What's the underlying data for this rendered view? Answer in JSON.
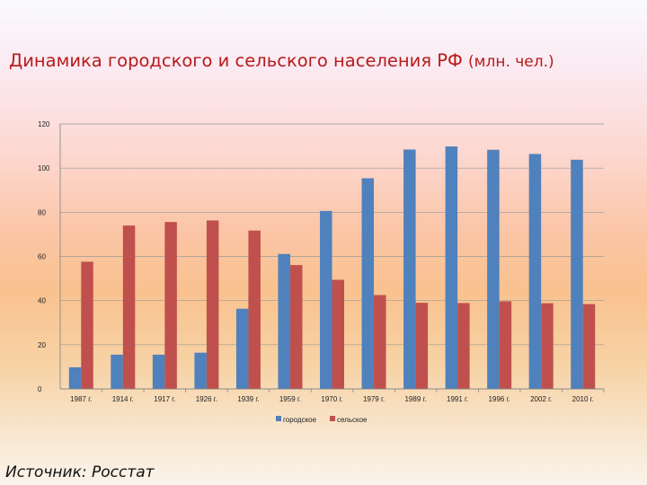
{
  "header": {
    "title_main": "Динамика городского и сельского населения РФ",
    "title_unit": "(млн. чел.)"
  },
  "footer": {
    "source": "Источник: Росстат"
  },
  "colors": {
    "series1": "#4f81bd",
    "series2": "#c0504d",
    "grid": "#9a9a9a",
    "axis_text": "#222222"
  },
  "chart_data": {
    "type": "bar",
    "title": "",
    "xlabel": "",
    "ylabel": "",
    "ylim": [
      0,
      120
    ],
    "yticks": [
      0,
      20,
      40,
      60,
      80,
      100,
      120
    ],
    "grid": true,
    "legend": "bottom",
    "categories": [
      "1987 г.",
      "1914 г.",
      "1917 г.",
      "1926 г.",
      "1939 г.",
      "1959 г.",
      "1970 г.",
      "1979 г.",
      "1989 г.",
      "1991 г.",
      "1996 г.",
      "2002 г.",
      "2010 г."
    ],
    "series": [
      {
        "name": "городское",
        "values": [
          9.8,
          15.5,
          15.5,
          16.4,
          36.3,
          61.1,
          80.6,
          95.4,
          108.4,
          109.8,
          108.3,
          106.4,
          103.8
        ]
      },
      {
        "name": "сельское",
        "values": [
          57.6,
          74.0,
          75.6,
          76.3,
          71.7,
          56.1,
          49.4,
          42.5,
          39.0,
          38.9,
          39.7,
          38.8,
          38.4
        ]
      }
    ]
  }
}
